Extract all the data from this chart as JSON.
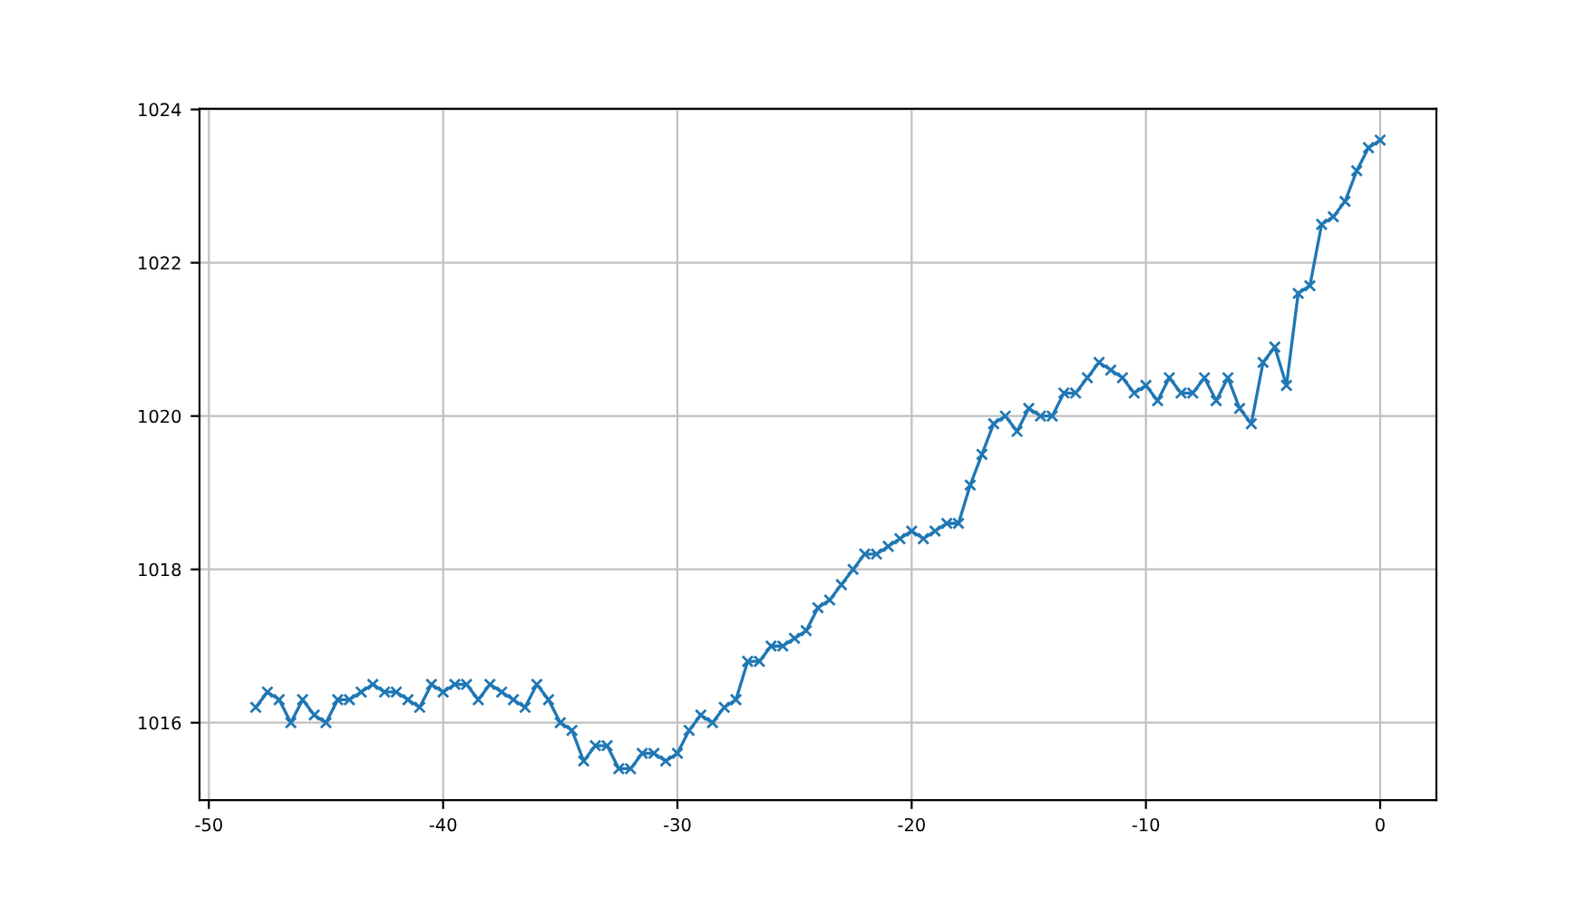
{
  "chart_data": {
    "type": "line",
    "x": [
      -48,
      -47.5,
      -47,
      -46.5,
      -46,
      -45.5,
      -45,
      -44.5,
      -44,
      -43.5,
      -43,
      -42.5,
      -42,
      -41.5,
      -41,
      -40.5,
      -40,
      -39.5,
      -39,
      -38.5,
      -38,
      -37.5,
      -37,
      -36.5,
      -36,
      -35.5,
      -35,
      -34.5,
      -34,
      -33.5,
      -33,
      -32.5,
      -32,
      -31.5,
      -31,
      -30.5,
      -30,
      -29.5,
      -29,
      -28.5,
      -28,
      -27.5,
      -27,
      -26.5,
      -26,
      -25.5,
      -25,
      -24.5,
      -24,
      -23.5,
      -23,
      -22.5,
      -22,
      -21.5,
      -21,
      -20.5,
      -20,
      -19.5,
      -19,
      -18.5,
      -18,
      -17.5,
      -17,
      -16.5,
      -16,
      -15.5,
      -15,
      -14.5,
      -14,
      -13.5,
      -13,
      -12.5,
      -12,
      -11.5,
      -11,
      -10.5,
      -10,
      -9.5,
      -9,
      -8.5,
      -8,
      -7.5,
      -7,
      -6.5,
      -6,
      -5.5,
      -5,
      -4.5,
      -4,
      -3.5,
      -3,
      -2.5,
      -2,
      -1.5,
      -1,
      -0.5,
      0
    ],
    "series": [
      {
        "color": "#1f77b4",
        "values": [
          1016.2,
          1016.4,
          1016.3,
          1016.0,
          1016.3,
          1016.1,
          1016.0,
          1016.3,
          1016.3,
          1016.4,
          1016.5,
          1016.4,
          1016.4,
          1016.3,
          1016.2,
          1016.5,
          1016.4,
          1016.5,
          1016.5,
          1016.3,
          1016.5,
          1016.4,
          1016.3,
          1016.2,
          1016.5,
          1016.3,
          1016.0,
          1015.9,
          1015.5,
          1015.7,
          1015.7,
          1015.4,
          1015.4,
          1015.6,
          1015.6,
          1015.5,
          1015.6,
          1015.9,
          1016.1,
          1016.0,
          1016.2,
          1016.3,
          1016.8,
          1016.8,
          1017.0,
          1017.0,
          1017.1,
          1017.2,
          1017.5,
          1017.6,
          1017.8,
          1018.0,
          1018.2,
          1018.2,
          1018.3,
          1018.4,
          1018.5,
          1018.4,
          1018.5,
          1018.6,
          1018.6,
          1019.1,
          1019.5,
          1019.9,
          1020.0,
          1019.8,
          1020.1,
          1020.0,
          1020.0,
          1020.3,
          1020.3,
          1020.5,
          1020.7,
          1020.6,
          1020.5,
          1020.3,
          1020.4,
          1020.2,
          1020.5,
          1020.3,
          1020.3,
          1020.5,
          1020.2,
          1020.5,
          1020.1,
          1019.9,
          1020.7,
          1020.9,
          1020.4,
          1021.6,
          1021.7,
          1022.5,
          1022.6,
          1022.8,
          1023.2,
          1023.5,
          1023.6
        ]
      }
    ],
    "xlim": [
      -50.4,
      2.4
    ],
    "ylim": [
      1014.99,
      1024.01
    ],
    "xticks": [
      -50,
      -40,
      -30,
      -20,
      -10,
      0
    ],
    "yticks": [
      1016,
      1018,
      1020,
      1022,
      1024
    ],
    "grid": true,
    "marker": "cross",
    "line_style": "solid"
  }
}
